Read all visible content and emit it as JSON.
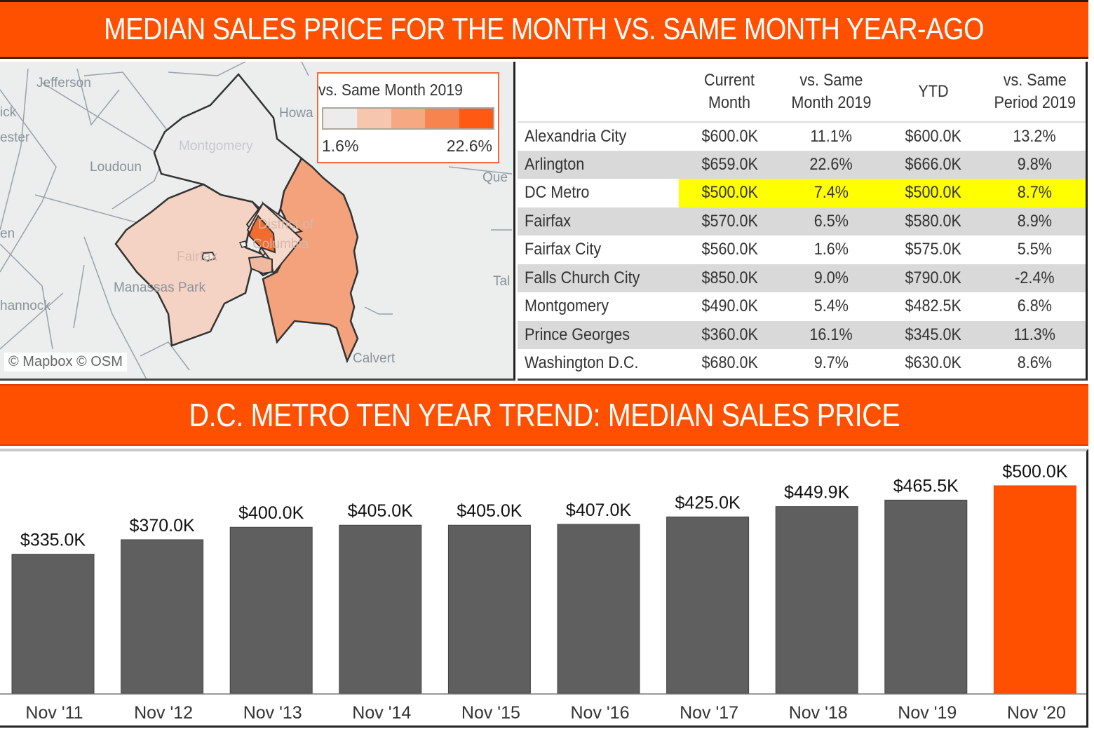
{
  "banner_top": {
    "title": "MEDIAN SALES PRICE FOR THE MONTH VS. SAME MONTH YEAR-AGO"
  },
  "map": {
    "legend": {
      "title": "vs. Same Month 2019",
      "min_label": "1.6%",
      "max_label": "22.6%",
      "ramp_colors": [
        "#ececec",
        "#f7c6ae",
        "#f6a882",
        "#f6844f",
        "#ff5a14"
      ]
    },
    "labels": {
      "jefferson": "Jefferson",
      "frederick_partial": "ick",
      "winchester_partial": "ester",
      "loudoun": "Loudoun",
      "montgomery": "Montgomery",
      "howard_partial": "Howa",
      "queen_partial": "Que",
      "district_of": "District of",
      "columbia": "Columbia",
      "fairfax": "Fairfax",
      "warren_partial": "en",
      "manassas_park": "Manassas Park",
      "rappahannock_partial": "hannock",
      "talbot_partial": "Tal",
      "calvert": "Calvert"
    },
    "attribution": "© Mapbox © OSM",
    "region_colors": {
      "montgomery": "#ececec",
      "fairfax": "#f4d3c4",
      "district": "#f5d9cb",
      "arlington": "#f16d2f",
      "alexandria": "#f1b8a0",
      "prince_georges": "#f3a27c",
      "fairfax_city": "#f0efee"
    }
  },
  "table": {
    "columns": [
      "",
      "Current\nMonth",
      "vs. Same\nMonth 2019",
      "YTD",
      "vs. Same\nPeriod 2019"
    ],
    "column_lines": [
      [
        "",
        ""
      ],
      [
        "Current",
        "Month"
      ],
      [
        "vs. Same",
        "Month 2019"
      ],
      [
        "YTD",
        ""
      ],
      [
        "vs. Same",
        "Period 2019"
      ]
    ],
    "rows": [
      {
        "name": "Alexandria City",
        "current_month": "$600.0K",
        "vs_month": "11.1%",
        "ytd": "$600.0K",
        "vs_period": "13.2%"
      },
      {
        "name": "Arlington",
        "current_month": "$659.0K",
        "vs_month": "22.6%",
        "ytd": "$666.0K",
        "vs_period": "9.8%"
      },
      {
        "name": "DC Metro",
        "current_month": "$500.0K",
        "vs_month": "7.4%",
        "ytd": "$500.0K",
        "vs_period": "8.7%",
        "highlight": true
      },
      {
        "name": "Fairfax",
        "current_month": "$570.0K",
        "vs_month": "6.5%",
        "ytd": "$580.0K",
        "vs_period": "8.9%"
      },
      {
        "name": "Fairfax City",
        "current_month": "$560.0K",
        "vs_month": "1.6%",
        "ytd": "$575.0K",
        "vs_period": "5.5%"
      },
      {
        "name": "Falls Church City",
        "current_month": "$850.0K",
        "vs_month": "9.0%",
        "ytd": "$790.0K",
        "vs_period": "-2.4%"
      },
      {
        "name": "Montgomery",
        "current_month": "$490.0K",
        "vs_month": "5.4%",
        "ytd": "$482.5K",
        "vs_period": "6.8%"
      },
      {
        "name": "Prince Georges",
        "current_month": "$360.0K",
        "vs_month": "16.1%",
        "ytd": "$345.0K",
        "vs_period": "11.3%"
      },
      {
        "name": "Washington D.C.",
        "current_month": "$680.0K",
        "vs_month": "9.7%",
        "ytd": "$630.0K",
        "vs_period": "8.6%"
      }
    ],
    "highlight_color": "#ffff00",
    "alt_row_color": "#d9d9d9"
  },
  "banner_bottom": {
    "title": "D.C. METRO TEN YEAR TREND: MEDIAN SALES PRICE"
  },
  "colors": {
    "accent": "#ff5000",
    "bar": "#5f5f5f",
    "bar_highlight": "#ff5000"
  },
  "chart_data": {
    "type": "bar",
    "title": "D.C. METRO TEN YEAR TREND: MEDIAN SALES PRICE",
    "xlabel": "",
    "ylabel": "",
    "categories": [
      "Nov '11",
      "Nov '12",
      "Nov '13",
      "Nov '14",
      "Nov '15",
      "Nov '16",
      "Nov '17",
      "Nov '18",
      "Nov '19",
      "Nov '20"
    ],
    "values": [
      335.0,
      370.0,
      400.0,
      405.0,
      405.0,
      407.0,
      425.0,
      449.9,
      465.5,
      500.0
    ],
    "value_labels": [
      "$335.0K",
      "$370.0K",
      "$400.0K",
      "$405.0K",
      "$405.0K",
      "$407.0K",
      "$425.0K",
      "$449.9K",
      "$465.5K",
      "$500.0K"
    ],
    "units": "thousands USD",
    "highlight_index": 9,
    "ylim": [
      0,
      500
    ],
    "grid": false,
    "legend": "none"
  }
}
